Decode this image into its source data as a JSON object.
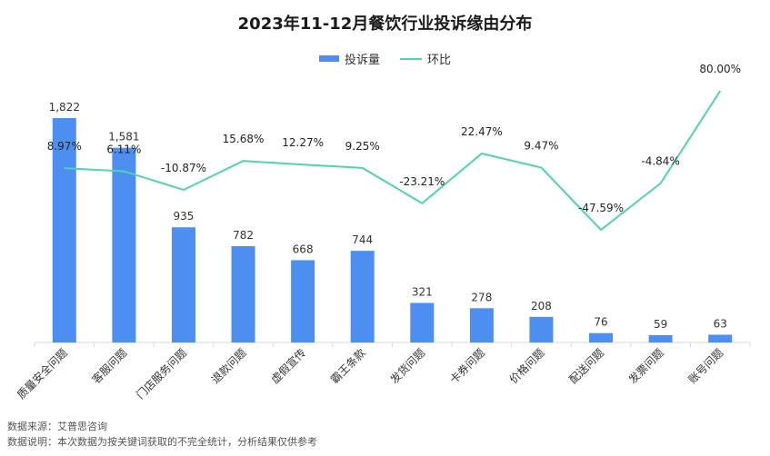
{
  "chart_data": {
    "type": "bar",
    "title": "2023年11-12月餐饮行业投诉缘由分布",
    "categories": [
      "质量安全问题",
      "客服问题",
      "门店服务问题",
      "退款问题",
      "虚假宣传",
      "霸王条款",
      "发货问题",
      "卡券问题",
      "价格问题",
      "配送问题",
      "发票问题",
      "账号问题"
    ],
    "series": [
      {
        "name": "投诉量",
        "type": "bar",
        "values": [
          1822,
          1581,
          935,
          782,
          668,
          744,
          321,
          278,
          208,
          76,
          59,
          63
        ],
        "labels": [
          "1,822",
          "1,581",
          "935",
          "782",
          "668",
          "744",
          "321",
          "278",
          "208",
          "76",
          "59",
          "63"
        ]
      },
      {
        "name": "环比",
        "type": "line",
        "values": [
          8.97,
          6.11,
          -10.87,
          15.68,
          12.27,
          9.25,
          -23.21,
          22.47,
          9.47,
          -47.59,
          -4.84,
          80.0
        ],
        "labels": [
          "8.97%",
          "6.11%",
          "-10.87%",
          "15.68%",
          "12.27%",
          "9.25%",
          "-23.21%",
          "22.47%",
          "9.47%",
          "-47.59%",
          "-4.84%",
          "80.00%"
        ]
      }
    ],
    "y_bar_range": [
      0,
      1822
    ],
    "y_line_range": [
      -47.59,
      80.0
    ],
    "legend_position": "top-center",
    "grid": false,
    "colors": {
      "bar": "#4d8ff0",
      "line": "#4fd6a8"
    }
  },
  "footnotes": {
    "source": "数据来源：艾普思咨询",
    "note": "数据说明：本次数据为按关键词获取的不完全统计，分析结果仅供参考"
  }
}
